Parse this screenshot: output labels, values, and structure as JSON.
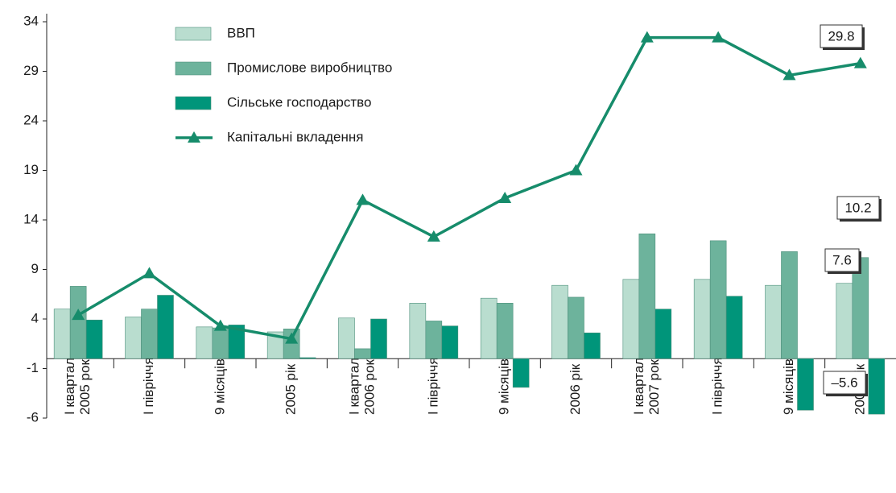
{
  "chart_data": {
    "type": "bar_line",
    "categories": [
      [
        "І квартал",
        "2005 року"
      ],
      [
        "І півріччя"
      ],
      [
        "9 місяців"
      ],
      [
        "2005 рік"
      ],
      [
        "І квартал",
        "2006 року"
      ],
      [
        "І півріччя"
      ],
      [
        "9 місяців"
      ],
      [
        "2006 рік"
      ],
      [
        "І квартал",
        "2007 року"
      ],
      [
        "І півріччя"
      ],
      [
        "9 місяців"
      ],
      [
        "2007 рік"
      ]
    ],
    "series": [
      {
        "name": "ВВП",
        "color": "#b9ddcf",
        "kind": "bar",
        "values": [
          5.0,
          4.2,
          3.2,
          2.7,
          4.1,
          5.6,
          6.1,
          7.4,
          8.0,
          8.0,
          7.4,
          7.6
        ],
        "value_labels": [
          null,
          null,
          null,
          null,
          null,
          null,
          null,
          null,
          null,
          null,
          null,
          "7.6"
        ]
      },
      {
        "name": "Промислове виробництво",
        "color": "#6db39c",
        "kind": "bar",
        "values": [
          7.3,
          5.0,
          3.1,
          3.0,
          1.0,
          3.8,
          5.6,
          6.2,
          12.6,
          11.9,
          10.8,
          10.2
        ],
        "value_labels": [
          null,
          null,
          null,
          null,
          null,
          null,
          null,
          null,
          null,
          null,
          null,
          "10.2"
        ]
      },
      {
        "name": "Сільське господарство",
        "color": "#00957a",
        "kind": "bar",
        "values": [
          3.9,
          6.4,
          3.4,
          0.1,
          4.0,
          3.3,
          -2.9,
          2.6,
          5.0,
          6.3,
          -5.2,
          -5.6
        ],
        "value_labels": [
          null,
          null,
          null,
          null,
          null,
          null,
          null,
          null,
          null,
          null,
          null,
          "–5.6"
        ]
      },
      {
        "name": "Капітальні вкладення",
        "color": "#168c6b",
        "kind": "line",
        "values": [
          4.4,
          8.6,
          3.3,
          2.0,
          16.0,
          12.3,
          16.2,
          19.0,
          32.4,
          32.4,
          28.6,
          29.8
        ],
        "value_labels": [
          null,
          null,
          null,
          null,
          null,
          null,
          null,
          null,
          null,
          null,
          null,
          "29.8"
        ]
      }
    ],
    "ylim": [
      -6,
      34
    ],
    "yticks": [
      34,
      29,
      24,
      19,
      14,
      9,
      4,
      -1,
      -6
    ]
  }
}
